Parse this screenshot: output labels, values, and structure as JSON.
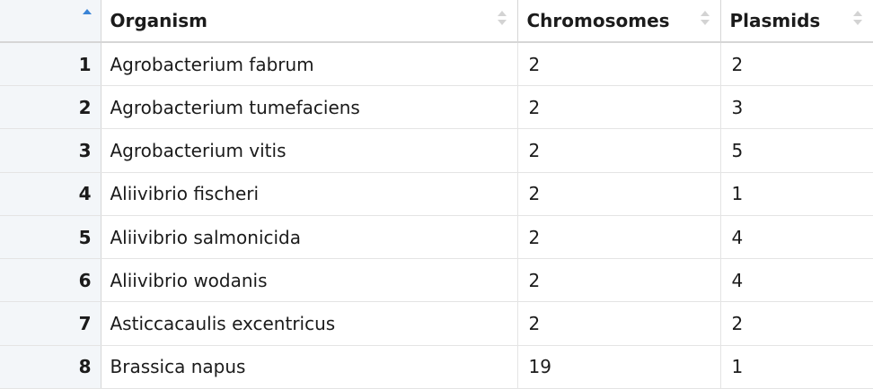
{
  "table": {
    "columns": [
      "",
      "Organism",
      "Chromosomes",
      "Plasmids"
    ],
    "sort": {
      "column": 0,
      "direction": "ascending"
    },
    "rows": [
      [
        "1",
        "Agrobacterium fabrum",
        "2",
        "2"
      ],
      [
        "2",
        "Agrobacterium tumefaciens",
        "2",
        "3"
      ],
      [
        "3",
        "Agrobacterium vitis",
        "2",
        "5"
      ],
      [
        "4",
        "Aliivibrio fischeri",
        "2",
        "1"
      ],
      [
        "5",
        "Aliivibrio salmonicida",
        "2",
        "4"
      ],
      [
        "6",
        "Aliivibrio wodanis",
        "2",
        "4"
      ],
      [
        "7",
        "Asticcacaulis excentricus",
        "2",
        "2"
      ],
      [
        "8",
        "Brassica napus",
        "19",
        "1"
      ]
    ]
  },
  "colors": {
    "index_bg": "#f3f6f9",
    "sort_active": "#3a84d6",
    "sort_inactive": "#d3d3d3",
    "border": "#e4e4e4"
  }
}
